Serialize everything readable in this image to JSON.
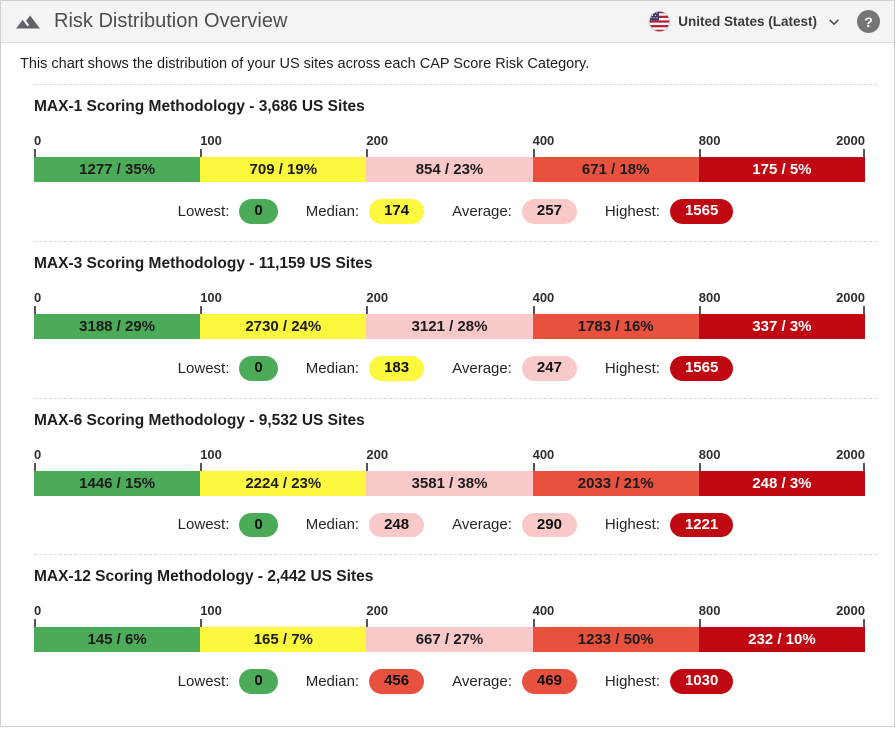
{
  "header": {
    "title": "Risk Distribution Overview",
    "region_selector": {
      "label": "United States (Latest)"
    },
    "help_label": "?"
  },
  "description": "This chart shows the distribution of your US sites across each CAP Score Risk Category.",
  "colors": {
    "green": "#4BAB59",
    "yellow": "#FBF83D",
    "pink": "#F9C8C8",
    "salmon": "#E8513E",
    "dark_red": "#C00812"
  },
  "axis": {
    "ticks": [
      "0",
      "100",
      "200",
      "400",
      "800",
      "2000"
    ],
    "positions_pct": [
      0,
      20,
      40,
      60,
      80,
      100
    ]
  },
  "chart_data": [
    {
      "type": "bar",
      "title": "MAX-1 Scoring Methodology - 3,686 US Sites",
      "total_sites": 3686,
      "x_axis_ticks": [
        0,
        100,
        200,
        400,
        800,
        2000
      ],
      "segments": [
        {
          "range": "0-100",
          "label": "1277 / 35%",
          "count": 1277,
          "percent": 35,
          "color": "green",
          "text": "dark"
        },
        {
          "range": "100-200",
          "label": "709 / 19%",
          "count": 709,
          "percent": 19,
          "color": "yellow",
          "text": "dark"
        },
        {
          "range": "200-400",
          "label": "854 / 23%",
          "count": 854,
          "percent": 23,
          "color": "pink",
          "text": "dark"
        },
        {
          "range": "400-800",
          "label": "671 / 18%",
          "count": 671,
          "percent": 18,
          "color": "salmon",
          "text": "dark"
        },
        {
          "range": "800-2000",
          "label": "175 / 5%",
          "count": 175,
          "percent": 5,
          "color": "dark_red",
          "text": "light"
        }
      ],
      "stats": [
        {
          "label": "Lowest:",
          "value": "0",
          "color": "green",
          "text": "dark"
        },
        {
          "label": "Median:",
          "value": "174",
          "color": "yellow",
          "text": "dark"
        },
        {
          "label": "Average:",
          "value": "257",
          "color": "pink",
          "text": "dark"
        },
        {
          "label": "Highest:",
          "value": "1565",
          "color": "dark_red",
          "text": "light"
        }
      ]
    },
    {
      "type": "bar",
      "title": "MAX-3 Scoring Methodology - 11,159 US Sites",
      "total_sites": 11159,
      "x_axis_ticks": [
        0,
        100,
        200,
        400,
        800,
        2000
      ],
      "segments": [
        {
          "range": "0-100",
          "label": "3188 / 29%",
          "count": 3188,
          "percent": 29,
          "color": "green",
          "text": "dark"
        },
        {
          "range": "100-200",
          "label": "2730 / 24%",
          "count": 2730,
          "percent": 24,
          "color": "yellow",
          "text": "dark"
        },
        {
          "range": "200-400",
          "label": "3121 / 28%",
          "count": 3121,
          "percent": 28,
          "color": "pink",
          "text": "dark"
        },
        {
          "range": "400-800",
          "label": "1783 / 16%",
          "count": 1783,
          "percent": 16,
          "color": "salmon",
          "text": "dark"
        },
        {
          "range": "800-2000",
          "label": "337 / 3%",
          "count": 337,
          "percent": 3,
          "color": "dark_red",
          "text": "light"
        }
      ],
      "stats": [
        {
          "label": "Lowest:",
          "value": "0",
          "color": "green",
          "text": "dark"
        },
        {
          "label": "Median:",
          "value": "183",
          "color": "yellow",
          "text": "dark"
        },
        {
          "label": "Average:",
          "value": "247",
          "color": "pink",
          "text": "dark"
        },
        {
          "label": "Highest:",
          "value": "1565",
          "color": "dark_red",
          "text": "light"
        }
      ]
    },
    {
      "type": "bar",
      "title": "MAX-6 Scoring Methodology - 9,532 US Sites",
      "total_sites": 9532,
      "x_axis_ticks": [
        0,
        100,
        200,
        400,
        800,
        2000
      ],
      "segments": [
        {
          "range": "0-100",
          "label": "1446 / 15%",
          "count": 1446,
          "percent": 15,
          "color": "green",
          "text": "dark"
        },
        {
          "range": "100-200",
          "label": "2224 / 23%",
          "count": 2224,
          "percent": 23,
          "color": "yellow",
          "text": "dark"
        },
        {
          "range": "200-400",
          "label": "3581 / 38%",
          "count": 3581,
          "percent": 38,
          "color": "pink",
          "text": "dark"
        },
        {
          "range": "400-800",
          "label": "2033 / 21%",
          "count": 2033,
          "percent": 21,
          "color": "salmon",
          "text": "dark"
        },
        {
          "range": "800-2000",
          "label": "248 / 3%",
          "count": 248,
          "percent": 3,
          "color": "dark_red",
          "text": "light"
        }
      ],
      "stats": [
        {
          "label": "Lowest:",
          "value": "0",
          "color": "green",
          "text": "dark"
        },
        {
          "label": "Median:",
          "value": "248",
          "color": "pink",
          "text": "dark"
        },
        {
          "label": "Average:",
          "value": "290",
          "color": "pink",
          "text": "dark"
        },
        {
          "label": "Highest:",
          "value": "1221",
          "color": "dark_red",
          "text": "light"
        }
      ]
    },
    {
      "type": "bar",
      "title": "MAX-12 Scoring Methodology - 2,442 US Sites",
      "total_sites": 2442,
      "x_axis_ticks": [
        0,
        100,
        200,
        400,
        800,
        2000
      ],
      "segments": [
        {
          "range": "0-100",
          "label": "145 / 6%",
          "count": 145,
          "percent": 6,
          "color": "green",
          "text": "dark"
        },
        {
          "range": "100-200",
          "label": "165 / 7%",
          "count": 165,
          "percent": 7,
          "color": "yellow",
          "text": "dark"
        },
        {
          "range": "200-400",
          "label": "667 / 27%",
          "count": 667,
          "percent": 27,
          "color": "pink",
          "text": "dark"
        },
        {
          "range": "400-800",
          "label": "1233 / 50%",
          "count": 1233,
          "percent": 50,
          "color": "salmon",
          "text": "dark"
        },
        {
          "range": "800-2000",
          "label": "232 / 10%",
          "count": 232,
          "percent": 10,
          "color": "dark_red",
          "text": "light"
        }
      ],
      "stats": [
        {
          "label": "Lowest:",
          "value": "0",
          "color": "green",
          "text": "dark"
        },
        {
          "label": "Median:",
          "value": "456",
          "color": "salmon",
          "text": "dark"
        },
        {
          "label": "Average:",
          "value": "469",
          "color": "salmon",
          "text": "dark"
        },
        {
          "label": "Highest:",
          "value": "1030",
          "color": "dark_red",
          "text": "light"
        }
      ]
    }
  ]
}
